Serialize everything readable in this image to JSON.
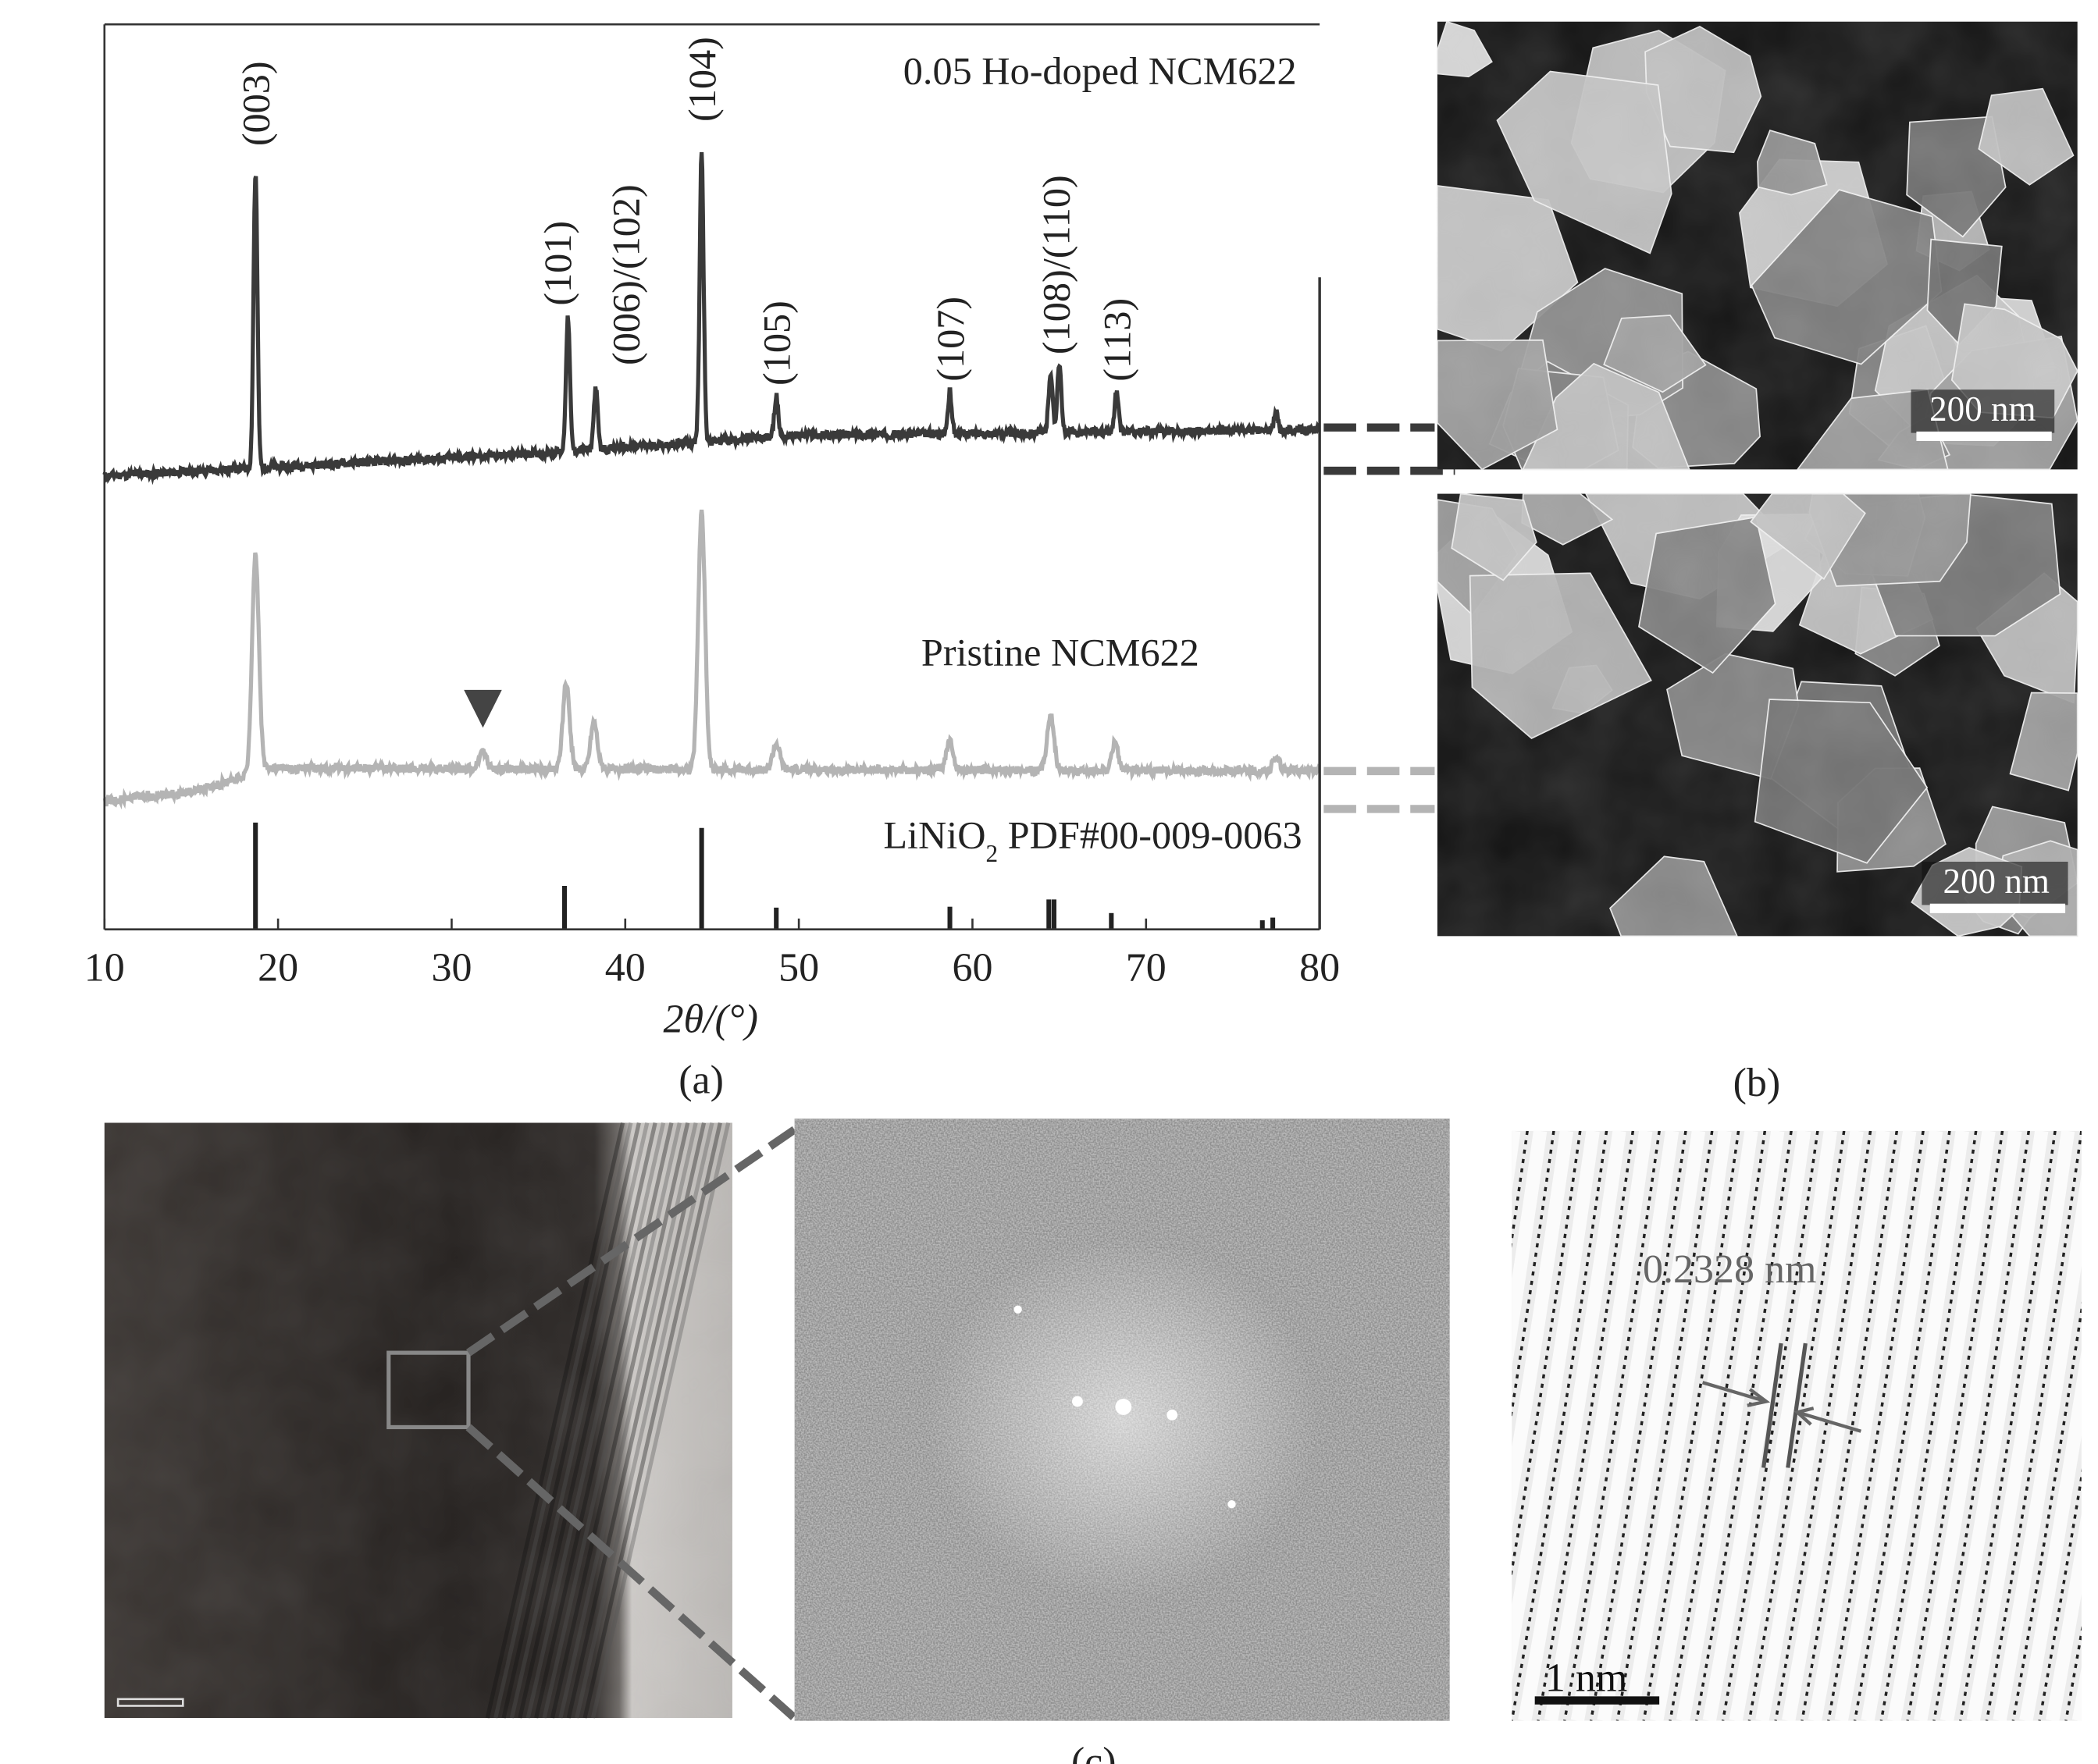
{
  "chart_data": {
    "type": "line",
    "xlabel": "2θ/(°)",
    "ylabel": "",
    "xlim": [
      10,
      80
    ],
    "ylim": [
      0,
      100
    ],
    "x_ticks": [
      "10",
      "20",
      "30",
      "40",
      "50",
      "60",
      "70",
      "80"
    ],
    "grid": false,
    "series": [
      {
        "name": "0.05 Ho-doped NCM622",
        "color": "#3a3a3a",
        "baseline": [
          [
            10,
            50.1
          ],
          [
            20,
            51.1
          ],
          [
            35,
            52.6
          ],
          [
            50,
            54.6
          ],
          [
            80,
            55.2
          ]
        ],
        "peaks": [
          [
            18.7,
            83.6
          ],
          [
            36.7,
            67.6
          ],
          [
            38.3,
            59.9
          ],
          [
            44.4,
            86.2
          ],
          [
            48.7,
            58.9
          ],
          [
            58.7,
            59.3
          ],
          [
            64.5,
            61.6
          ],
          [
            65.0,
            62.6
          ],
          [
            68.3,
            59.3
          ],
          [
            77.5,
            57.1
          ]
        ]
      },
      {
        "name": "Pristine NCM622",
        "color": "#b4b4b4",
        "baseline": [
          [
            10,
            14.2
          ],
          [
            15,
            15.2
          ],
          [
            17.5,
            16.5
          ],
          [
            19.5,
            17.8
          ],
          [
            80,
            17.5
          ]
        ],
        "peaks": [
          [
            18.7,
            41.4
          ],
          [
            31.8,
            19.7
          ],
          [
            36.6,
            27.2
          ],
          [
            38.2,
            23.0
          ],
          [
            44.4,
            46.2
          ],
          [
            48.7,
            20.5
          ],
          [
            58.7,
            20.8
          ],
          [
            64.5,
            23.8
          ],
          [
            68.2,
            20.5
          ],
          [
            77.5,
            19.0
          ]
        ]
      },
      {
        "name": "LiNiO2 PDF#00-009-0063",
        "type": "stick",
        "color": "#222222",
        "peaks": [
          [
            18.7,
            11.8
          ],
          [
            36.5,
            4.8
          ],
          [
            44.4,
            11.2
          ],
          [
            48.7,
            2.4
          ],
          [
            58.7,
            2.5
          ],
          [
            64.4,
            3.3
          ],
          [
            64.7,
            3.3
          ],
          [
            68.0,
            1.8
          ],
          [
            76.7,
            1.0
          ],
          [
            77.3,
            1.3
          ]
        ]
      }
    ],
    "peak_labels": [
      {
        "text": "(003)",
        "x": 18.7
      },
      {
        "text": "(101)",
        "x": 36.7
      },
      {
        "text": "(006)/(102)",
        "x": 38.3
      },
      {
        "text": "(104)",
        "x": 44.4
      },
      {
        "text": "(105)",
        "x": 48.7
      },
      {
        "text": "(107)",
        "x": 58.7
      },
      {
        "text": "(108)/(110)",
        "x": 64.8
      },
      {
        "text": "(113)",
        "x": 68.3
      }
    ],
    "annotations": [
      {
        "type": "triangle-marker",
        "x": 31.8
      }
    ]
  },
  "labels": {
    "doped": "0.05 Ho-doped NCM622",
    "pristine": "Pristine NCM622",
    "ref_main": "LiNiO",
    "ref_sub": "2",
    "ref_rest": " PDF#00-009-0063",
    "panel_a": "(a)",
    "panel_b": "(b)",
    "panel_c": "(c)",
    "sem_top_scale": "200 nm",
    "sem_bottom_scale": "200 nm",
    "lattice_spacing": "0.2328 nm",
    "lattice_scale": "1 nm"
  }
}
